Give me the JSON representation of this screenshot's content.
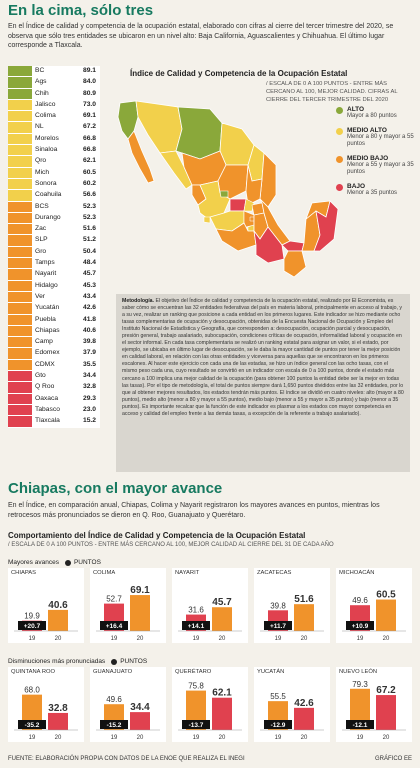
{
  "header": {
    "title": "En la cima, sólo tres",
    "intro": "En el Índice de calidad y competencia de la ocupación estatal, elaborado con cifras al cierre del tercer trimestre del 2020, se observa que sólo tres entidades se ubicaron en un nivel alto: Baja California, Aguascalientes y Chihuahua. El último lugar corresponde a Tlaxcala."
  },
  "colors": {
    "alto": "#8aa83a",
    "medio_alto": "#f2d04b",
    "medio_bajo": "#f0932b",
    "bajo": "#e0414f",
    "accent": "#177a60"
  },
  "states": [
    {
      "name": "BC",
      "value": "89.1",
      "level": "alto"
    },
    {
      "name": "Ags",
      "value": "84.0",
      "level": "alto"
    },
    {
      "name": "Chih",
      "value": "80.9",
      "level": "alto"
    },
    {
      "name": "Jalisco",
      "value": "73.0",
      "level": "medio_alto"
    },
    {
      "name": "Colima",
      "value": "69.1",
      "level": "medio_alto"
    },
    {
      "name": "NL",
      "value": "67.2",
      "level": "medio_alto"
    },
    {
      "name": "Morelos",
      "value": "66.8",
      "level": "medio_alto"
    },
    {
      "name": "Sinaloa",
      "value": "66.8",
      "level": "medio_alto"
    },
    {
      "name": "Qro",
      "value": "62.1",
      "level": "medio_alto"
    },
    {
      "name": "Mich",
      "value": "60.5",
      "level": "medio_alto"
    },
    {
      "name": "Sonora",
      "value": "60.2",
      "level": "medio_alto"
    },
    {
      "name": "Coahuila",
      "value": "56.6",
      "level": "medio_alto"
    },
    {
      "name": "BCS",
      "value": "52.3",
      "level": "medio_bajo"
    },
    {
      "name": "Durango",
      "value": "52.3",
      "level": "medio_bajo"
    },
    {
      "name": "Zac",
      "value": "51.6",
      "level": "medio_bajo"
    },
    {
      "name": "SLP",
      "value": "51.2",
      "level": "medio_bajo"
    },
    {
      "name": "Gro",
      "value": "50.4",
      "level": "medio_bajo"
    },
    {
      "name": "Tamps",
      "value": "48.4",
      "level": "medio_bajo"
    },
    {
      "name": "Nayarit",
      "value": "45.7",
      "level": "medio_bajo"
    },
    {
      "name": "Hidalgo",
      "value": "45.3",
      "level": "medio_bajo"
    },
    {
      "name": "Ver",
      "value": "43.4",
      "level": "medio_bajo"
    },
    {
      "name": "Yucatán",
      "value": "42.6",
      "level": "medio_bajo"
    },
    {
      "name": "Puebla",
      "value": "41.8",
      "level": "medio_bajo"
    },
    {
      "name": "Chiapas",
      "value": "40.6",
      "level": "medio_bajo"
    },
    {
      "name": "Camp",
      "value": "39.8",
      "level": "medio_bajo"
    },
    {
      "name": "Edomex",
      "value": "37.9",
      "level": "medio_bajo"
    },
    {
      "name": "CDMX",
      "value": "35.5",
      "level": "medio_bajo"
    },
    {
      "name": "Gto",
      "value": "34.4",
      "level": "bajo"
    },
    {
      "name": "Q Roo",
      "value": "32.8",
      "level": "bajo"
    },
    {
      "name": "Oaxaca",
      "value": "29.3",
      "level": "bajo"
    },
    {
      "name": "Tabasco",
      "value": "23.0",
      "level": "bajo"
    },
    {
      "name": "Tlaxcala",
      "value": "15.2",
      "level": "bajo"
    }
  ],
  "map": {
    "title": "Índice de Calidad y Competencia de la Ocupación Estatal",
    "subtitle": "/ Escala de 0 a 100 puntos - Entre más cercano al 100, mejor calidad. Cifras al cierre del tercer trimestre del 2020"
  },
  "legend": [
    {
      "key": "alto",
      "label": "ALTO",
      "desc": "Mayor a 80 puntos"
    },
    {
      "key": "medio_alto",
      "label": "MEDIO ALTO",
      "desc": "Menor a 80 y mayor a 55 puntos"
    },
    {
      "key": "medio_bajo",
      "label": "MEDIO BAJO",
      "desc": "Menor a 55 y mayor a 35 puntos"
    },
    {
      "key": "bajo",
      "label": "BAJO",
      "desc": "Menor a 35 puntos"
    }
  ],
  "methodology": {
    "label": "Metodología.",
    "source": "El Economista,",
    "text": "El objetivo del Índice de calidad y competencia de la ocupación estatal, realizado por El Economista, es saber cómo se encuentran las 32 entidades federativas del país en materia laboral, principalmente en acceso al trabajo, y a su vez, realizar un ranking que posicione a cada entidad en los primeros lugares. Este indicador se hizo mediante ocho tasas complementarias de ocupación y desocupación, obtenidas de la Encuesta Nacional de Ocupación y Empleo del Instituto Nacional de Estadística y Geografía, que corresponden a: desocupación, ocupación parcial y desocupación, presión general, trabajo asalariado, subocupación, condiciones críticas de ocupación, informalidad laboral y ocupación en el sector informal. En cada tasa complementaria se realizó un ranking estatal para asignar un valor, si el estado, por ejemplo, se ubicaba en último lugar de desocupación, se le daba la mayor cantidad de puntos por tener la mejor posición en calidad laboral, en relación con las otras entidades y viceversa para aquellas que se encontraron en los primeros escalones. Al hacer este ejercicio con cada una de las estadas, se hizo un índice general con las ocho tasas, con el mismo peso cada una, cuyo resultado se convirtió en un indicador con escala de 0 a 100 puntos, donde el estado más cercano a 100 implica una mejor calidad de la ocupación (para obtener 100 puntos la entidad debe ser la mejor en todas las tasas). Por el tipo de metodología, el total de puntos siempre dará 1,650 puntos divididos entre las 32 entidades, por lo que al obtener mejores resultados, los estados tendrán más puntos. El índice se dividió en cuatro niveles: alto (mayor a 80 puntos), medio alto (menor a 80 y mayor a 55 puntos), medio bajo (menor a 55 y mayor a 35 puntos) y bajo (menor a 35 puntos). Es importante recalcar que la función de este indicador es plasmar a los estados con mayor competencia en acceso y calidad del empleo frente a las demás tasas, a excepción de la referente a trabajo asalariado)."
  },
  "section2": {
    "title": "Chiapas, con el mayor avance",
    "intro": "En el Índice, en comparación anual, Chiapas, Colima y Nayarit registraron los mayores avances en puntos, mientras los retrocesos más pronunciados se dieron en Q. Roo, Guanajuato y Querétaro.",
    "chart_title": "Comportamiento del Índice de Calidad y Competencia de la Ocupación Estatal",
    "chart_subtitle": "/ ESCALA DE 0 A 100 PUNTOS - ENTRE MÁS CERCANO AL 100, MEJOR CALIDAD AL CIERRE DEL 31 DE CADA AÑO",
    "gains_label": "Mayores avances",
    "losses_label": "Disminuciones más pronunciadas",
    "points_label": "PUNTOS"
  },
  "chart_data": [
    {
      "type": "bar",
      "title": "CHIAPAS",
      "categories": [
        "19",
        "20"
      ],
      "values": [
        19.9,
        40.6
      ],
      "change": "+20.7",
      "ylim": [
        0,
        100
      ]
    },
    {
      "type": "bar",
      "title": "COLIMA",
      "categories": [
        "19",
        "20"
      ],
      "values": [
        52.7,
        69.1
      ],
      "change": "+16.4",
      "ylim": [
        0,
        100
      ]
    },
    {
      "type": "bar",
      "title": "NAYARIT",
      "categories": [
        "19",
        "20"
      ],
      "values": [
        31.6,
        45.7
      ],
      "change": "+14.1",
      "ylim": [
        0,
        100
      ]
    },
    {
      "type": "bar",
      "title": "ZACATECAS",
      "categories": [
        "19",
        "20"
      ],
      "values": [
        39.8,
        51.6
      ],
      "change": "+11.7",
      "ylim": [
        0,
        100
      ]
    },
    {
      "type": "bar",
      "title": "MICHOACÁN",
      "categories": [
        "19",
        "20"
      ],
      "values": [
        49.6,
        60.5
      ],
      "change": "+10.9",
      "ylim": [
        0,
        100
      ]
    },
    {
      "type": "bar",
      "title": "QUINTANA ROO",
      "categories": [
        "19",
        "20"
      ],
      "values": [
        68.0,
        32.8
      ],
      "change": "-35.2",
      "ylim": [
        0,
        100
      ]
    },
    {
      "type": "bar",
      "title": "GUANAJUATO",
      "categories": [
        "19",
        "20"
      ],
      "values": [
        49.6,
        34.4
      ],
      "change": "-15.2",
      "ylim": [
        0,
        100
      ]
    },
    {
      "type": "bar",
      "title": "QUERÉTARO",
      "categories": [
        "19",
        "20"
      ],
      "values": [
        75.8,
        62.1
      ],
      "change": "-13.7",
      "ylim": [
        0,
        100
      ]
    },
    {
      "type": "bar",
      "title": "YUCATÁN",
      "categories": [
        "19",
        "20"
      ],
      "values": [
        55.5,
        42.6
      ],
      "change": "-12.9",
      "ylim": [
        0,
        100
      ]
    },
    {
      "type": "bar",
      "title": "NUEVO LEÓN",
      "categories": [
        "19",
        "20"
      ],
      "values": [
        79.3,
        67.2
      ],
      "change": "-12.1",
      "ylim": [
        0,
        100
      ]
    }
  ],
  "footer": {
    "source": "FUENTE: ELABORACIÓN PROPIA CON DATOS DE LA ENOE QUE REALIZA EL INEGI",
    "credit": "GRÁFICO EE"
  }
}
